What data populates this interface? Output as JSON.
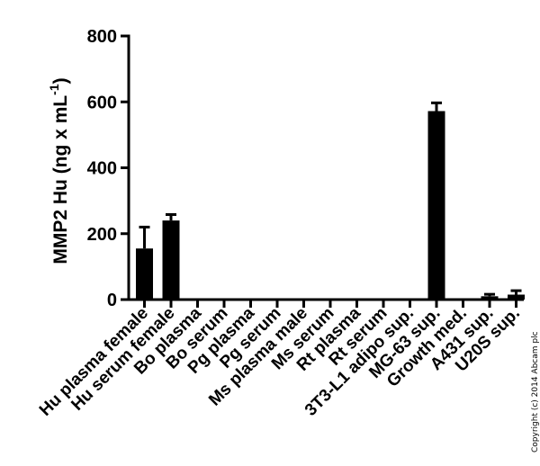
{
  "chart_data": {
    "type": "bar",
    "ylabel_main": "MMP2 Hu (ng x mL",
    "ylabel_sup": "-1",
    "ylabel_close": ")",
    "ylim": [
      0,
      800
    ],
    "yticks": [
      0,
      200,
      400,
      600,
      800
    ],
    "categories": [
      "Hu plasma female",
      "Hu serum female",
      "Bo plasma",
      "Bo serum",
      "Pg plasma",
      "Pg serum",
      "Ms plasma male",
      "Ms serum",
      "Rt plasma",
      "Rt serum",
      "3T3-L1 adipo sup.",
      "MG-63 sup.",
      "Growth med.",
      "A431 sup.",
      "U20S sup."
    ],
    "values": [
      155,
      240,
      0,
      0,
      0,
      0,
      0,
      0,
      0,
      0,
      0,
      572,
      0,
      10,
      15
    ],
    "errors": [
      65,
      18,
      0,
      0,
      0,
      0,
      0,
      0,
      0,
      0,
      0,
      25,
      0,
      6,
      12
    ],
    "grid": false,
    "legend": "none",
    "color": "#000000"
  },
  "copyright": "Copyright (c) 2014 Abcam plc"
}
